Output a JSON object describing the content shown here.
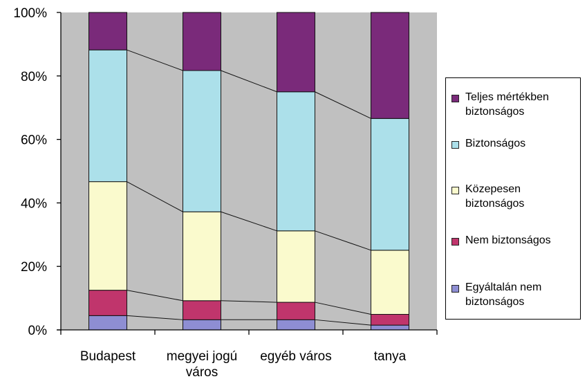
{
  "chart_data": {
    "type": "bar",
    "stacked": true,
    "percent": true,
    "categories": [
      "Budapest",
      "megyei jogú\nváros",
      "egyéb város",
      "tanya"
    ],
    "ylim": [
      0,
      100
    ],
    "yticks": [
      "0%",
      "20%",
      "40%",
      "60%",
      "80%",
      "100%"
    ],
    "series": [
      {
        "name": "Egyáltalán nem\nbiztonságos",
        "color": "#8e8ed3",
        "values": [
          4.5,
          3.2,
          3.2,
          1.5
        ]
      },
      {
        "name": "Nem biztonságos",
        "color": "#c0356c",
        "values": [
          8.0,
          6.0,
          5.5,
          3.4
        ]
      },
      {
        "name": "Közepesen\nbiztonságos",
        "color": "#fafacd",
        "values": [
          34.2,
          28.0,
          22.5,
          20.2
        ]
      },
      {
        "name": "Biztonságos",
        "color": "#ace0ea",
        "values": [
          41.5,
          44.5,
          43.8,
          41.5
        ]
      },
      {
        "name": "Teljes mértékben\nbiztonságos",
        "color": "#7a2a7a",
        "values": [
          11.8,
          18.3,
          25.0,
          33.4
        ]
      }
    ],
    "legend_order": [
      4,
      3,
      2,
      1,
      0
    ],
    "plot_background": "#c0c0c0",
    "grid": false,
    "legend_position": "right",
    "connector_lines": true
  }
}
